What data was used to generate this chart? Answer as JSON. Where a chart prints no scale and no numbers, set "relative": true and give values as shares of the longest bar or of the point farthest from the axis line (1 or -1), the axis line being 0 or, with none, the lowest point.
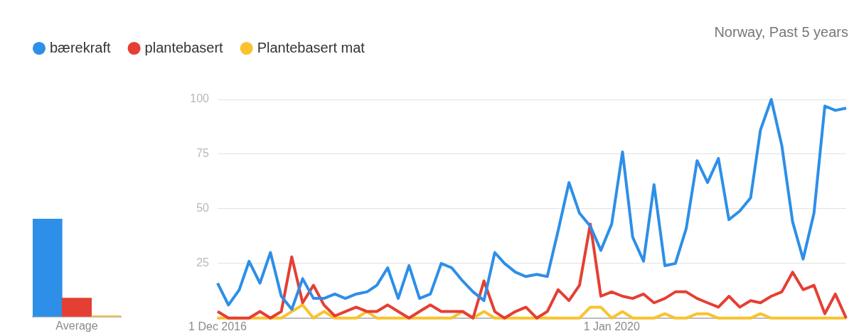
{
  "chart_data": [
    {
      "type": "bar",
      "relative": true,
      "categories": [
        null,
        null,
        null
      ],
      "values": [
        1,
        0.19,
        0.01
      ],
      "colors": [
        "#2d8fe8",
        "#e53f33",
        "#f9c22e"
      ],
      "xlabel": "Average",
      "grid": false
    },
    {
      "type": "line",
      "subtitle": "Norway, Past 5 years",
      "x": [
        "2016-12",
        "2017-01",
        "2017-02",
        "2017-03",
        "2017-04",
        "2017-05",
        "2017-06",
        "2017-07",
        "2017-08",
        "2017-09",
        "2017-10",
        "2017-11",
        "2017-12",
        "2018-01",
        "2018-02",
        "2018-03",
        "2018-04",
        "2018-05",
        "2018-06",
        "2018-07",
        "2018-08",
        "2018-09",
        "2018-10",
        "2018-11",
        "2018-12",
        "2019-01",
        "2019-02",
        "2019-03",
        "2019-04",
        "2019-05",
        "2019-06",
        "2019-07",
        "2019-08",
        "2019-09",
        "2019-10",
        "2019-11",
        "2019-12",
        "2020-01",
        "2020-02",
        "2020-03",
        "2020-04",
        "2020-05",
        "2020-06",
        "2020-07",
        "2020-08",
        "2020-09",
        "2020-10",
        "2020-11",
        "2020-12",
        "2021-01",
        "2021-02",
        "2021-03",
        "2021-04",
        "2021-05",
        "2021-06",
        "2021-07",
        "2021-08",
        "2021-09",
        "2021-10",
        "2021-11"
      ],
      "xlim": [
        "2016-12",
        "2021-11"
      ],
      "xticks": [
        {
          "value": "2016-12-01",
          "label": "1 Dec 2016"
        },
        {
          "value": "2020-01-01",
          "label": "1 Jan 2020"
        }
      ],
      "ylim": [
        0,
        100
      ],
      "yticks": [
        25,
        50,
        75,
        100
      ],
      "grid": "y",
      "legend": "top left",
      "marker": "none",
      "series": [
        {
          "name": "bærekraft",
          "color": "#2d8fe8",
          "values": [
            16,
            6,
            13,
            26,
            16,
            30,
            10,
            4,
            18,
            9,
            9,
            11,
            9,
            11,
            12,
            15,
            23,
            9,
            24,
            9,
            11,
            25,
            23,
            17,
            12,
            8,
            30,
            25,
            21,
            19,
            20,
            19,
            40,
            62,
            48,
            42,
            31,
            43,
            76,
            37,
            26,
            61,
            24,
            25,
            41,
            72,
            62,
            73,
            45,
            49,
            55,
            86,
            100,
            79,
            44,
            27,
            48,
            97,
            95,
            96
          ]
        },
        {
          "name": "plantebasert",
          "color": "#e53f33",
          "values": [
            3,
            0,
            0,
            0,
            3,
            0,
            3,
            28,
            7,
            15,
            6,
            1,
            3,
            5,
            3,
            3,
            6,
            3,
            0,
            3,
            6,
            3,
            3,
            3,
            0,
            17,
            3,
            0,
            3,
            5,
            0,
            3,
            13,
            8,
            15,
            43,
            10,
            12,
            10,
            9,
            11,
            7,
            9,
            12,
            12,
            9,
            7,
            5,
            10,
            5,
            8,
            7,
            10,
            12,
            21,
            13,
            15,
            2,
            11,
            0
          ]
        },
        {
          "name": "Plantebasert mat",
          "color": "#f9c22e",
          "values": [
            0,
            0,
            0,
            0,
            0,
            0,
            0,
            3,
            6,
            0,
            3,
            0,
            0,
            0,
            3,
            0,
            0,
            0,
            0,
            0,
            0,
            0,
            0,
            3,
            0,
            3,
            0,
            0,
            0,
            0,
            0,
            0,
            0,
            0,
            0,
            5,
            5,
            0,
            3,
            0,
            0,
            0,
            2,
            0,
            0,
            2,
            2,
            0,
            0,
            0,
            0,
            2,
            0,
            0,
            0,
            0,
            0,
            0,
            0,
            0
          ]
        }
      ]
    }
  ]
}
